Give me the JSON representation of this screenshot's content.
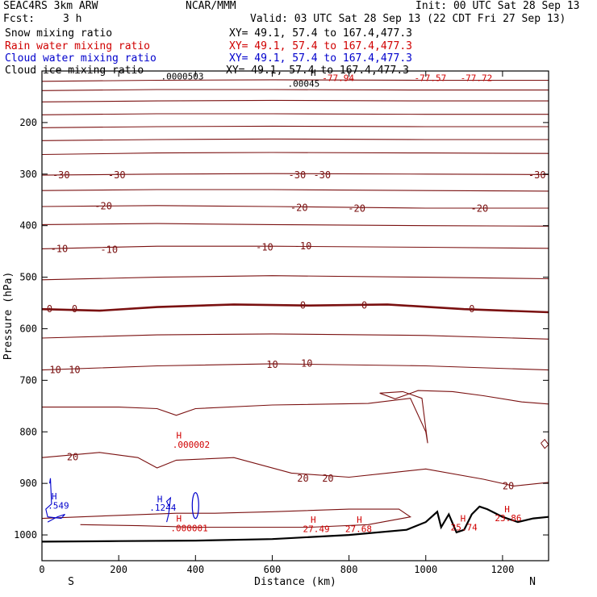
{
  "header": {
    "model": "SEAC4RS   3km ARW",
    "org": "NCAR/MMM",
    "init": "Init: 00 UTC Sat 28 Sep 13",
    "fcst_label": "Fcst:",
    "fcst_value": "3 h",
    "valid": "Valid: 03 UTC Sat 28 Sep 13 (22 CDT Fri 27 Sep 13)"
  },
  "fields": [
    {
      "name": "Snow mixing ratio",
      "xy": "XY=  49.1, 57.4 to 167.4,477.3",
      "color": "#000000"
    },
    {
      "name": "Rain water mixing ratio",
      "xy": "XY=  49.1, 57.4 to 167.4,477.3",
      "color": "#d00000"
    },
    {
      "name": "Cloud water mixing ratio",
      "xy": "XY=  49.1, 57.4 to 167.4,477.3",
      "color": "#0000cc"
    },
    {
      "name": "Cloud ice mixing ratio",
      "xy": "XY=  49.1, 57.4 to 167.4,477.3",
      "color": "#000000"
    }
  ],
  "chart_data": {
    "type": "line",
    "xlabel": "Distance (km)",
    "ylabel": "Pressure (hPa)",
    "xlim": [
      0,
      1320
    ],
    "ylim": [
      1050,
      100
    ],
    "x_ticks": [
      0,
      200,
      400,
      600,
      800,
      1000,
      1200
    ],
    "y_ticks": [
      200,
      300,
      400,
      500,
      600,
      700,
      800,
      900,
      1000
    ],
    "y_tick_labels_hidden": [
      100
    ],
    "endpoint_labels": {
      "left": "S",
      "right": "N"
    },
    "temperature_contour_labels": [
      {
        "text": "-30",
        "x": 50,
        "y": 302
      },
      {
        "text": "-30",
        "x": 195,
        "y": 302
      },
      {
        "text": "-30",
        "x": 665,
        "y": 302
      },
      {
        "text": "-30",
        "x": 730,
        "y": 302
      },
      {
        "text": "-30",
        "x": 1290,
        "y": 302
      },
      {
        "text": "-20",
        "x": 160,
        "y": 362
      },
      {
        "text": "-20",
        "x": 670,
        "y": 365
      },
      {
        "text": "-20",
        "x": 820,
        "y": 367
      },
      {
        "text": "-20",
        "x": 1140,
        "y": 367
      },
      {
        "text": "-10",
        "x": 45,
        "y": 445
      },
      {
        "text": "-10",
        "x": 175,
        "y": 447
      },
      {
        "text": "-10",
        "x": 580,
        "y": 442
      },
      {
        "text": "-10",
        "x": 680,
        "y": 440
      },
      {
        "text": "0",
        "x": 20,
        "y": 562
      },
      {
        "text": "0",
        "x": 85,
        "y": 562
      },
      {
        "text": "0",
        "x": 680,
        "y": 555
      },
      {
        "text": "0",
        "x": 840,
        "y": 555
      },
      {
        "text": "0",
        "x": 1120,
        "y": 562
      },
      {
        "text": "10",
        "x": 35,
        "y": 680
      },
      {
        "text": "10",
        "x": 85,
        "y": 680
      },
      {
        "text": "10",
        "x": 600,
        "y": 670
      },
      {
        "text": "10",
        "x": 690,
        "y": 667
      },
      {
        "text": "20",
        "x": 80,
        "y": 849
      },
      {
        "text": "20",
        "x": 680,
        "y": 890
      },
      {
        "text": "20",
        "x": 745,
        "y": 890
      },
      {
        "text": "20",
        "x": 1215,
        "y": 905
      }
    ],
    "extrema_labels": [
      {
        "text": "H",
        "x": 700,
        "y": 103,
        "color": "#000000"
      },
      {
        "text": ".00045",
        "x": 640,
        "y": 124,
        "color": "#000000"
      },
      {
        "text": ".0000503",
        "x": 310,
        "y": 110,
        "color": "#000000"
      },
      {
        "text": "-77.94",
        "x": 730,
        "y": 113,
        "color": "#d00000"
      },
      {
        "text": "-77.57",
        "x": 970,
        "y": 113,
        "color": "#d00000"
      },
      {
        "text": "-77.72",
        "x": 1090,
        "y": 113,
        "color": "#d00000"
      },
      {
        "text": "H",
        "x": 350,
        "y": 807,
        "color": "#d00000"
      },
      {
        "text": ".000002",
        "x": 340,
        "y": 825,
        "color": "#d00000"
      },
      {
        "text": "H",
        "x": 350,
        "y": 968,
        "color": "#d00000"
      },
      {
        "text": ".000001",
        "x": 335,
        "y": 987,
        "color": "#d00000"
      },
      {
        "text": "H",
        "x": 700,
        "y": 970,
        "color": "#d00000"
      },
      {
        "text": "27.49",
        "x": 680,
        "y": 988,
        "color": "#d00000"
      },
      {
        "text": "H",
        "x": 820,
        "y": 970,
        "color": "#d00000"
      },
      {
        "text": "27.68",
        "x": 790,
        "y": 988,
        "color": "#d00000"
      },
      {
        "text": "H",
        "x": 1090,
        "y": 968,
        "color": "#d00000"
      },
      {
        "text": "25.74",
        "x": 1065,
        "y": 985,
        "color": "#d00000"
      },
      {
        "text": "H",
        "x": 1205,
        "y": 950,
        "color": "#d00000"
      },
      {
        "text": "23.86",
        "x": 1180,
        "y": 967,
        "color": "#d00000"
      },
      {
        "text": "H",
        "x": 25,
        "y": 925,
        "color": "#0000cc"
      },
      {
        "text": ".549",
        "x": 15,
        "y": 943,
        "color": "#0000cc"
      },
      {
        "text": "H",
        "x": 300,
        "y": 930,
        "color": "#0000cc"
      },
      {
        "text": ".1244",
        "x": 280,
        "y": 947,
        "color": "#0000cc"
      }
    ],
    "temperature_contours": [
      {
        "level": "upper",
        "points": [
          [
            0,
            120
          ],
          [
            300,
            118
          ],
          [
            600,
            117
          ],
          [
            1000,
            118
          ],
          [
            1320,
            118
          ]
        ]
      },
      {
        "level": "upper",
        "points": [
          [
            0,
            138
          ],
          [
            300,
            136
          ],
          [
            600,
            136
          ],
          [
            1000,
            137
          ],
          [
            1320,
            137
          ]
        ]
      },
      {
        "level": "upper",
        "points": [
          [
            0,
            160
          ],
          [
            300,
            158
          ],
          [
            600,
            157
          ],
          [
            1000,
            158
          ],
          [
            1320,
            158
          ]
        ]
      },
      {
        "level": "upper",
        "points": [
          [
            0,
            185
          ],
          [
            300,
            183
          ],
          [
            600,
            183
          ],
          [
            1000,
            184
          ],
          [
            1320,
            184
          ]
        ]
      },
      {
        "level": "upper",
        "points": [
          [
            0,
            210
          ],
          [
            300,
            208
          ],
          [
            600,
            207
          ],
          [
            1000,
            208
          ],
          [
            1320,
            208
          ]
        ]
      },
      {
        "level": "upper",
        "points": [
          [
            0,
            235
          ],
          [
            300,
            233
          ],
          [
            600,
            232
          ],
          [
            1000,
            233
          ],
          [
            1320,
            233
          ]
        ]
      },
      {
        "level": "upper",
        "points": [
          [
            0,
            262
          ],
          [
            300,
            259
          ],
          [
            600,
            258
          ],
          [
            1000,
            259
          ],
          [
            1320,
            260
          ]
        ]
      },
      {
        "level": "-30",
        "points": [
          [
            0,
            302
          ],
          [
            300,
            300
          ],
          [
            600,
            299
          ],
          [
            1000,
            300
          ],
          [
            1320,
            301
          ]
        ]
      },
      {
        "level": "-25",
        "points": [
          [
            0,
            332
          ],
          [
            300,
            330
          ],
          [
            600,
            330
          ],
          [
            1000,
            332
          ],
          [
            1320,
            333
          ]
        ]
      },
      {
        "level": "-20",
        "points": [
          [
            0,
            363
          ],
          [
            300,
            361
          ],
          [
            600,
            363
          ],
          [
            1000,
            366
          ],
          [
            1320,
            366
          ]
        ]
      },
      {
        "level": "-15",
        "points": [
          [
            0,
            398
          ],
          [
            300,
            396
          ],
          [
            600,
            398
          ],
          [
            1000,
            400
          ],
          [
            1320,
            401
          ]
        ]
      },
      {
        "level": "-10",
        "points": [
          [
            0,
            445
          ],
          [
            300,
            440
          ],
          [
            600,
            440
          ],
          [
            1000,
            442
          ],
          [
            1320,
            444
          ]
        ]
      },
      {
        "level": "-5",
        "points": [
          [
            0,
            505
          ],
          [
            300,
            500
          ],
          [
            600,
            497
          ],
          [
            1000,
            500
          ],
          [
            1320,
            503
          ]
        ]
      },
      {
        "level": "0",
        "points": [
          [
            0,
            562
          ],
          [
            150,
            565
          ],
          [
            300,
            558
          ],
          [
            500,
            553
          ],
          [
            700,
            555
          ],
          [
            900,
            553
          ],
          [
            1100,
            562
          ],
          [
            1320,
            568
          ]
        ]
      },
      {
        "level": "5",
        "points": [
          [
            0,
            618
          ],
          [
            300,
            612
          ],
          [
            600,
            610
          ],
          [
            1000,
            613
          ],
          [
            1320,
            620
          ]
        ]
      },
      {
        "level": "10",
        "points": [
          [
            0,
            680
          ],
          [
            300,
            672
          ],
          [
            600,
            668
          ],
          [
            1000,
            672
          ],
          [
            1320,
            680
          ]
        ]
      },
      {
        "level": "15",
        "points": [
          [
            0,
            752
          ],
          [
            200,
            752
          ],
          [
            300,
            755
          ],
          [
            350,
            768
          ],
          [
            400,
            755
          ],
          [
            600,
            748
          ],
          [
            850,
            745
          ],
          [
            960,
            735
          ],
          [
            1000,
            800
          ],
          [
            1005,
            822
          ],
          [
            990,
            735
          ],
          [
            940,
            722
          ],
          [
            880,
            725
          ],
          [
            920,
            736
          ],
          [
            980,
            720
          ],
          [
            1070,
            722
          ],
          [
            1150,
            730
          ],
          [
            1250,
            742
          ],
          [
            1320,
            746
          ]
        ]
      },
      {
        "level": "20",
        "points": [
          [
            0,
            850
          ],
          [
            150,
            840
          ],
          [
            250,
            850
          ],
          [
            300,
            870
          ],
          [
            350,
            855
          ],
          [
            500,
            850
          ],
          [
            650,
            880
          ],
          [
            800,
            888
          ],
          [
            900,
            880
          ],
          [
            1000,
            872
          ],
          [
            1150,
            892
          ],
          [
            1230,
            905
          ],
          [
            1320,
            898
          ]
        ]
      },
      {
        "level": "25",
        "points": [
          [
            0,
            968
          ],
          [
            200,
            962
          ],
          [
            350,
            958
          ],
          [
            450,
            958
          ],
          [
            600,
            955
          ],
          [
            800,
            950
          ],
          [
            930,
            950
          ],
          [
            960,
            965
          ],
          [
            850,
            980
          ],
          [
            700,
            985
          ],
          [
            550,
            985
          ],
          [
            400,
            985
          ],
          [
            250,
            982
          ],
          [
            100,
            980
          ]
        ]
      }
    ],
    "terrain": [
      [
        0,
        1013
      ],
      [
        200,
        1012
      ],
      [
        400,
        1011
      ],
      [
        600,
        1008
      ],
      [
        800,
        1000
      ],
      [
        950,
        990
      ],
      [
        1000,
        975
      ],
      [
        1030,
        955
      ],
      [
        1040,
        985
      ],
      [
        1060,
        960
      ],
      [
        1080,
        995
      ],
      [
        1100,
        990
      ],
      [
        1120,
        960
      ],
      [
        1140,
        945
      ],
      [
        1160,
        950
      ],
      [
        1200,
        965
      ],
      [
        1240,
        975
      ],
      [
        1280,
        968
      ],
      [
        1320,
        965
      ]
    ]
  }
}
